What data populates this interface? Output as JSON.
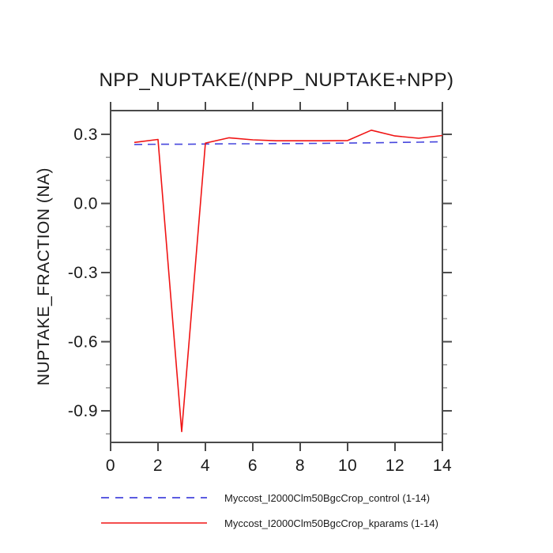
{
  "chart_data": {
    "type": "line",
    "title": "NPP_NUPTAKE/(NPP_NUPTAKE+NPP)",
    "ylabel": "NUPTAKE_FRACTION (NA)",
    "xlabel": "",
    "x": [
      1,
      2,
      3,
      4,
      5,
      6,
      7,
      8,
      9,
      10,
      11,
      12,
      13,
      14
    ],
    "series": [
      {
        "name": "Myccost_I2000Clm50BgcCrop_control (1-14)",
        "color": "#4646dd",
        "line_style": "dashed",
        "values": [
          0.256,
          0.257,
          0.257,
          0.258,
          0.259,
          0.259,
          0.26,
          0.26,
          0.261,
          0.262,
          0.263,
          0.265,
          0.266,
          0.268
        ]
      },
      {
        "name": "Myccost_I2000Clm50BgcCrop_kparams (1-14)",
        "color": "#f01414",
        "line_style": "solid",
        "values": [
          0.265,
          0.278,
          -0.99,
          0.262,
          0.285,
          0.276,
          0.272,
          0.272,
          0.272,
          0.273,
          0.318,
          0.293,
          0.283,
          0.295
        ]
      }
    ],
    "xlim": [
      0,
      14
    ],
    "ylim": [
      -1.037,
      0.403
    ],
    "x_ticks": [
      0,
      2,
      4,
      6,
      8,
      10,
      12,
      14
    ],
    "x_tick_labels": [
      "0",
      "2",
      "4",
      "6",
      "8",
      "10",
      "12",
      "14"
    ],
    "y_ticks": [
      0.3,
      0.0,
      -0.3,
      -0.6,
      -0.9
    ],
    "y_tick_labels": [
      "0.3",
      "0.0",
      "-0.3",
      "-0.6",
      "-0.9"
    ],
    "y_minor_step": 0.1,
    "grid": false,
    "legend_position": "bottom-left",
    "frame_color": "#4a4a4a",
    "major_tick_color": "#4a4a4a",
    "minor_tick_color": "#9a9a9a"
  }
}
